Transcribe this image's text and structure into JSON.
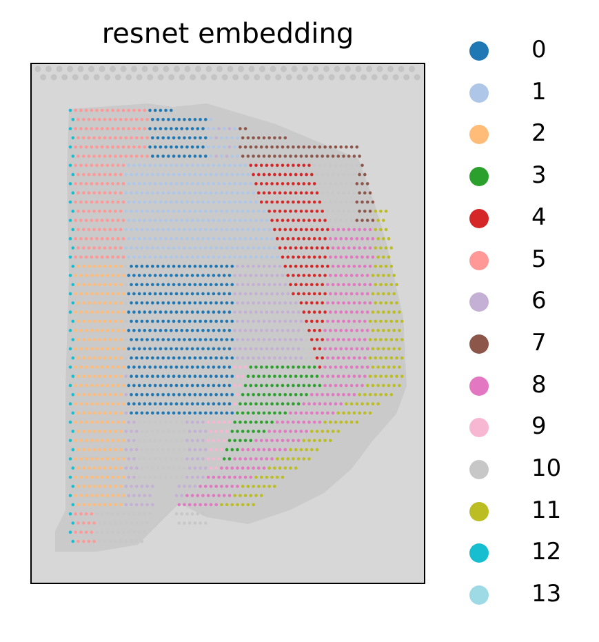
{
  "chart_data": {
    "type": "scatter",
    "title": "resnet embedding",
    "xlabel": "",
    "ylabel": "",
    "grid": false,
    "legend_position": "right",
    "background": "grayscale tissue image",
    "categories": [
      "0",
      "1",
      "2",
      "3",
      "4",
      "5",
      "6",
      "7",
      "8",
      "9",
      "10",
      "11",
      "12",
      "13"
    ],
    "colors": [
      "#1f77b4",
      "#aec7e8",
      "#ffbb78",
      "#2ca02c",
      "#d62728",
      "#ff9896",
      "#c5b0d5",
      "#8c564b",
      "#e377c2",
      "#f7b6d2",
      "#c7c7c7",
      "#bcbd22",
      "#17becf",
      "#9edae5"
    ]
  }
}
